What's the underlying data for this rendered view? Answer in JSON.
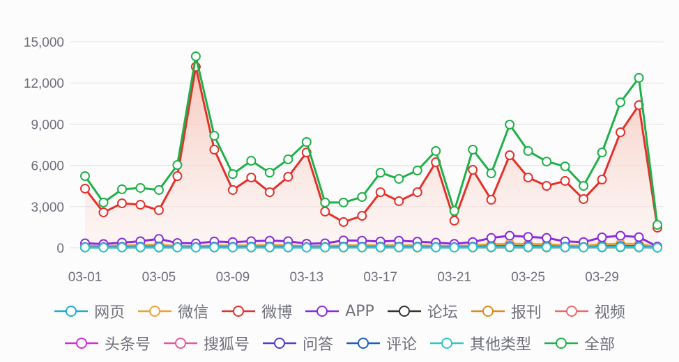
{
  "chart_data": {
    "type": "line",
    "title": "",
    "xlabel": "",
    "ylabel": "",
    "ylim": [
      0,
      15000
    ],
    "yticks": [
      0,
      3000,
      6000,
      9000,
      12000,
      15000
    ],
    "ytick_labels": [
      "0",
      "3,000",
      "6,000",
      "9,000",
      "12,000",
      "15,000"
    ],
    "x": [
      "03-01",
      "03-02",
      "03-03",
      "03-04",
      "03-05",
      "03-06",
      "03-07",
      "03-08",
      "03-09",
      "03-10",
      "03-11",
      "03-12",
      "03-13",
      "03-14",
      "03-15",
      "03-16",
      "03-17",
      "03-18",
      "03-19",
      "03-20",
      "03-21",
      "03-22",
      "03-23",
      "03-24",
      "03-25",
      "03-26",
      "03-27",
      "03-28",
      "03-29",
      "03-30",
      "03-31",
      "04-01"
    ],
    "xtick_labels": [
      "03-01",
      "03-05",
      "03-09",
      "03-13",
      "03-17",
      "03-21",
      "03-25",
      "03-29"
    ],
    "grid": true,
    "legend_position": "bottom",
    "series": [
      {
        "name": "网页",
        "color": "#21a9d8",
        "values": [
          80,
          60,
          90,
          100,
          110,
          70,
          60,
          90,
          80,
          100,
          110,
          90,
          60,
          70,
          90,
          90,
          100,
          90,
          90,
          80,
          60,
          90,
          120,
          140,
          130,
          120,
          90,
          80,
          120,
          130,
          120,
          40
        ]
      },
      {
        "name": "微信",
        "color": "#f0a030",
        "values": [
          150,
          120,
          170,
          200,
          230,
          130,
          120,
          170,
          160,
          180,
          200,
          180,
          120,
          140,
          180,
          180,
          190,
          180,
          170,
          150,
          120,
          180,
          260,
          300,
          280,
          260,
          180,
          160,
          260,
          300,
          280,
          60
        ]
      },
      {
        "name": "微博",
        "color": "#e5302a",
        "values": [
          4310,
          2580,
          3240,
          3140,
          2740,
          5220,
          13180,
          7150,
          4210,
          5120,
          4050,
          5170,
          6940,
          2640,
          1880,
          2330,
          4050,
          3400,
          4050,
          6230,
          1980,
          5680,
          3500,
          6740,
          5120,
          4510,
          4870,
          3550,
          4970,
          8410,
          10390,
          1470
        ]
      },
      {
        "name": "APP",
        "color": "#8a2be2",
        "values": [
          330,
          280,
          380,
          480,
          650,
          350,
          320,
          460,
          420,
          480,
          520,
          480,
          300,
          330,
          540,
          520,
          460,
          520,
          450,
          380,
          290,
          420,
          720,
          880,
          800,
          720,
          470,
          420,
          760,
          880,
          780,
          90
        ]
      },
      {
        "name": "论坛",
        "color": "#333333",
        "values": [
          20,
          20,
          20,
          25,
          25,
          20,
          20,
          25,
          20,
          25,
          25,
          25,
          20,
          20,
          25,
          25,
          25,
          25,
          25,
          20,
          20,
          25,
          30,
          35,
          30,
          30,
          25,
          20,
          30,
          35,
          30,
          10
        ]
      },
      {
        "name": "报刊",
        "color": "#e08a1e",
        "values": [
          30,
          20,
          30,
          30,
          40,
          30,
          20,
          30,
          30,
          30,
          40,
          30,
          20,
          30,
          30,
          30,
          30,
          30,
          30,
          30,
          20,
          30,
          40,
          50,
          40,
          40,
          30,
          30,
          40,
          50,
          40,
          10
        ]
      },
      {
        "name": "视频",
        "color": "#e86a6a",
        "values": [
          40,
          30,
          40,
          50,
          60,
          40,
          30,
          50,
          40,
          50,
          60,
          50,
          30,
          40,
          50,
          50,
          50,
          50,
          50,
          40,
          30,
          50,
          70,
          80,
          70,
          70,
          50,
          40,
          70,
          80,
          70,
          20
        ]
      },
      {
        "name": "头条号",
        "color": "#d22bd6",
        "values": [
          60,
          50,
          70,
          80,
          100,
          60,
          50,
          80,
          70,
          80,
          90,
          80,
          50,
          60,
          80,
          80,
          80,
          80,
          80,
          60,
          50,
          80,
          110,
          130,
          120,
          110,
          80,
          60,
          110,
          130,
          120,
          20
        ]
      },
      {
        "name": "搜狐号",
        "color": "#e8559a",
        "values": [
          30,
          20,
          30,
          40,
          50,
          30,
          20,
          40,
          30,
          40,
          40,
          40,
          20,
          30,
          40,
          40,
          40,
          40,
          40,
          30,
          20,
          40,
          50,
          60,
          50,
          50,
          40,
          30,
          50,
          60,
          50,
          10
        ]
      },
      {
        "name": "问答",
        "color": "#4b3fcf",
        "values": [
          40,
          30,
          40,
          50,
          60,
          40,
          30,
          50,
          40,
          50,
          50,
          50,
          30,
          40,
          50,
          50,
          50,
          50,
          50,
          40,
          30,
          50,
          70,
          80,
          70,
          70,
          50,
          40,
          70,
          80,
          70,
          20
        ]
      },
      {
        "name": "评论",
        "color": "#1f5fbf",
        "values": [
          50,
          40,
          60,
          70,
          80,
          50,
          40,
          70,
          60,
          70,
          70,
          70,
          40,
          50,
          70,
          70,
          70,
          70,
          70,
          50,
          40,
          70,
          90,
          110,
          100,
          90,
          70,
          50,
          90,
          110,
          100,
          20
        ]
      },
      {
        "name": "其他类型",
        "color": "#2cc7c9",
        "values": [
          30,
          20,
          30,
          40,
          40,
          30,
          20,
          40,
          30,
          40,
          40,
          40,
          20,
          30,
          40,
          40,
          40,
          40,
          40,
          30,
          20,
          40,
          50,
          60,
          50,
          50,
          40,
          30,
          50,
          60,
          50,
          10
        ]
      },
      {
        "name": "全部",
        "color": "#1fb04a",
        "values": [
          5220,
          3300,
          4260,
          4360,
          4210,
          6030,
          13940,
          8160,
          5370,
          6340,
          5470,
          6440,
          7700,
          3300,
          3300,
          3700,
          5470,
          5020,
          5630,
          7050,
          2690,
          7150,
          5420,
          8970,
          7050,
          6280,
          5930,
          4510,
          6940,
          10590,
          12370,
          1670
        ]
      }
    ]
  },
  "legend": {
    "rows": [
      [
        0,
        1,
        2,
        3,
        4,
        5,
        6
      ],
      [
        7,
        8,
        9,
        10,
        11,
        12
      ]
    ]
  },
  "styles": {
    "grid_color": "#e3e3e6",
    "axis_text_color": "#6e7079",
    "area_fill_series": "微博",
    "area_fill_color": "#f6c9bd"
  }
}
